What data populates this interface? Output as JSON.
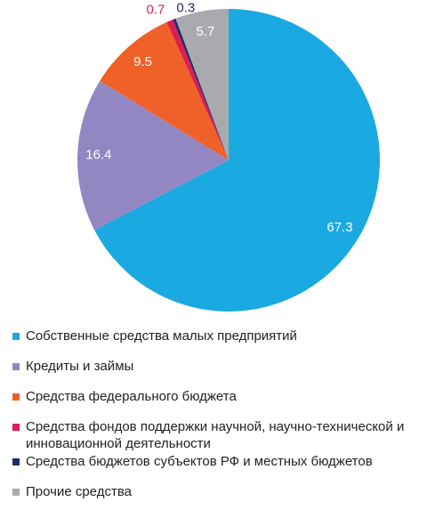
{
  "chart_data": {
    "type": "pie",
    "categories": [
      "Собственные средства малых предприятий",
      "Кредиты и займы",
      "Средства федерального бюджета",
      "Средства фондов поддержки научной, научно-технической и инновационной деятельности",
      "Средства бюджетов субъектов РФ и местных бюджетов",
      "Прочие средства"
    ],
    "values": [
      67.3,
      16.4,
      9.5,
      0.7,
      0.3,
      5.7
    ],
    "colors": [
      "#1ba9e1",
      "#9387c3",
      "#f0612a",
      "#df1d4f",
      "#1f2a6c",
      "#a8aaad"
    ]
  }
}
